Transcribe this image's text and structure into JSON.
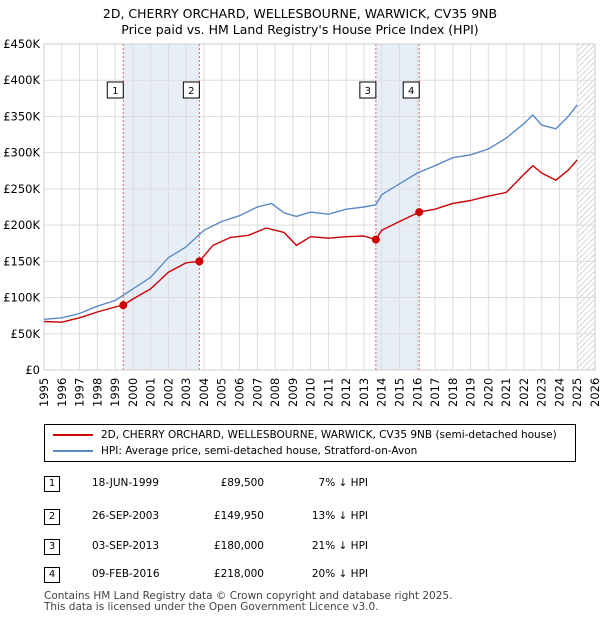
{
  "title_line1": "2D, CHERRY ORCHARD, WELLESBOURNE, WARWICK, CV35 9NB",
  "title_line2": "Price paid vs. HM Land Registry's House Price Index (HPI)",
  "colors": {
    "property": "#cc0000",
    "hpi": "#5a8ac6",
    "band": "#e8eef8"
  },
  "legend": {
    "property": "2D, CHERRY ORCHARD, WELLESBOURNE, WARWICK, CV35 9NB (semi-detached house)",
    "hpi": "HPI: Average price, semi-detached house, Stratford-on-Avon"
  },
  "table": [
    {
      "num": "1",
      "date": "18-JUN-1999",
      "price": "£89,500",
      "hpi": "7% ↓ HPI"
    },
    {
      "num": "2",
      "date": "26-SEP-2003",
      "price": "£149,950",
      "hpi": "13% ↓ HPI"
    },
    {
      "num": "3",
      "date": "03-SEP-2013",
      "price": "£180,000",
      "hpi": "21% ↓ HPI"
    },
    {
      "num": "4",
      "date": "09-FEB-2016",
      "price": "£218,000",
      "hpi": "20% ↓ HPI"
    }
  ],
  "footer_line1": "Contains HM Land Registry data © Crown copyright and database right 2025.",
  "footer_line2": "This data is licensed under the Open Government Licence v3.0.",
  "chart_data": {
    "type": "line",
    "title": "2D, CHERRY ORCHARD, WELLESBOURNE, WARWICK, CV35 9NB",
    "subtitle": "Price paid vs. HM Land Registry's House Price Index (HPI)",
    "xlabel": "",
    "ylabel": "",
    "xlim": [
      1995,
      2026
    ],
    "ylim": [
      0,
      450000
    ],
    "x_ticks": [
      1995,
      1996,
      1997,
      1998,
      1999,
      2000,
      2001,
      2002,
      2003,
      2004,
      2005,
      2006,
      2007,
      2008,
      2009,
      2010,
      2011,
      2012,
      2013,
      2014,
      2015,
      2016,
      2017,
      2018,
      2019,
      2020,
      2021,
      2022,
      2023,
      2024,
      2025,
      2026
    ],
    "y_ticks": [
      0,
      50000,
      100000,
      150000,
      200000,
      250000,
      300000,
      350000,
      400000,
      450000
    ],
    "y_tick_labels": [
      "£0",
      "£50K",
      "£100K",
      "£150K",
      "£200K",
      "£250K",
      "£300K",
      "£350K",
      "£400K",
      "£450K"
    ],
    "grid": true,
    "shaded_ranges": [
      [
        1999.46,
        2003.74
      ],
      [
        2013.67,
        2016.11
      ]
    ],
    "future_hatch_from": 2025.0,
    "series": [
      {
        "name": "2D, CHERRY ORCHARD, WELLESBOURNE, WARWICK, CV35 9NB (semi-detached house)",
        "color": "#cc0000",
        "x": [
          1995.0,
          1996.0,
          1997.0,
          1998.0,
          1999.0,
          1999.46,
          2000.0,
          2001.0,
          2002.0,
          2003.0,
          2003.74,
          2004.5,
          2005.5,
          2006.5,
          2007.5,
          2008.5,
          2009.2,
          2010.0,
          2011.0,
          2012.0,
          2013.0,
          2013.67,
          2014.0,
          2015.0,
          2016.11,
          2017.0,
          2018.0,
          2019.0,
          2020.0,
          2021.0,
          2022.0,
          2022.5,
          2023.0,
          2023.8,
          2024.5,
          2025.0
        ],
        "values": [
          67000,
          66000,
          72000,
          80000,
          87000,
          89500,
          98000,
          112000,
          135000,
          148000,
          149950,
          172000,
          183000,
          186000,
          196000,
          190000,
          172000,
          184000,
          182000,
          184000,
          185000,
          180000,
          193000,
          205000,
          218000,
          222000,
          230000,
          234000,
          240000,
          245000,
          270000,
          282000,
          272000,
          262000,
          276000,
          290000
        ]
      },
      {
        "name": "HPI: Average price, semi-detached house, Stratford-on-Avon",
        "color": "#5a8ac6",
        "x": [
          1995.0,
          1996.0,
          1997.0,
          1998.0,
          1999.0,
          2000.0,
          2001.0,
          2002.0,
          2003.0,
          2004.0,
          2005.0,
          2006.0,
          2007.0,
          2007.8,
          2008.5,
          2009.2,
          2010.0,
          2011.0,
          2012.0,
          2013.0,
          2013.67,
          2014.0,
          2015.0,
          2016.0,
          2017.0,
          2018.0,
          2019.0,
          2020.0,
          2021.0,
          2022.0,
          2022.5,
          2023.0,
          2023.8,
          2024.5,
          2025.0
        ],
        "values": [
          70000,
          72000,
          78000,
          88000,
          96000,
          112000,
          128000,
          155000,
          170000,
          193000,
          205000,
          213000,
          225000,
          230000,
          217000,
          212000,
          218000,
          215000,
          222000,
          225000,
          228000,
          242000,
          257000,
          272000,
          282000,
          293000,
          297000,
          305000,
          320000,
          340000,
          352000,
          338000,
          333000,
          350000,
          366000
        ]
      }
    ],
    "markers": [
      {
        "label": "1",
        "x": 1999.46,
        "y": 89500
      },
      {
        "label": "2",
        "x": 2003.74,
        "y": 149950
      },
      {
        "label": "3",
        "x": 2013.67,
        "y": 180000
      },
      {
        "label": "4",
        "x": 2016.11,
        "y": 218000
      }
    ]
  }
}
